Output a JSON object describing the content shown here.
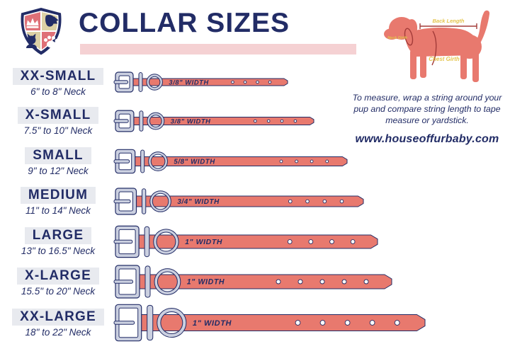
{
  "header": {
    "title": "COLLAR SIZES"
  },
  "sizes": [
    {
      "name": "XX-SMALL",
      "neck_range": "6\" to 8\" Neck",
      "width_label": "3/8\" WIDTH",
      "collar": {
        "length": 243,
        "thickness": 10,
        "holes": 4
      }
    },
    {
      "name": "X-SMALL",
      "neck_range": "7.5\" to 10\" Neck",
      "width_label": "3/8\" WIDTH",
      "collar": {
        "length": 280,
        "thickness": 11,
        "holes": 4
      }
    },
    {
      "name": "SMALL",
      "neck_range": "9\" to 12\" Neck",
      "width_label": "5/8\" WIDTH",
      "collar": {
        "length": 327,
        "thickness": 13,
        "holes": 4
      }
    },
    {
      "name": "MEDIUM",
      "neck_range": "11\" to 14\" Neck",
      "width_label": "3/4\" WIDTH",
      "collar": {
        "length": 350,
        "thickness": 15,
        "holes": 4
      }
    },
    {
      "name": "LARGE",
      "neck_range": "13\" to 16.5\" Neck",
      "width_label": "1\" WIDTH",
      "collar": {
        "length": 370,
        "thickness": 19,
        "holes": 4
      }
    },
    {
      "name": "X-LARGE",
      "neck_range": "15.5\" to 20\" Neck",
      "width_label": "1\" WIDTH",
      "collar": {
        "length": 390,
        "thickness": 20,
        "holes": 5
      }
    },
    {
      "name": "XX-LARGE",
      "neck_range": "18\" to 22\" Neck",
      "width_label": "1\" WIDTH",
      "collar": {
        "length": 437,
        "thickness": 23,
        "holes": 5
      }
    }
  ],
  "measuring_guide": {
    "dog_annotations": {
      "back": "Back Length",
      "neck": "Neck Girth",
      "chest": "Chest Girth"
    },
    "instructions": "To measure, wrap a string around your pup and compare string length to tape measure or yardstick.",
    "website": "www.houseoffurbaby.com"
  },
  "icons": {
    "logo": "house-of-furbaby-shield-logo",
    "logo_quadrants": [
      "crown",
      "dog-head",
      "cat",
      "paw-print"
    ]
  },
  "colors": {
    "navy": "#222C66",
    "salmon": "#E8796E",
    "pink_bar": "#F5D1D3",
    "label_bg": "#E8EAEF",
    "metal": "#CBD0E0",
    "annotation_yellow": "#E4C44C",
    "measure_line": "#A33B39",
    "shield_salmon": "#DF7077",
    "shield_tan": "#DCD0A5"
  }
}
